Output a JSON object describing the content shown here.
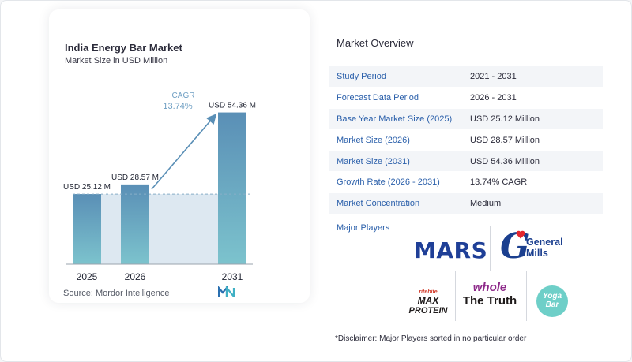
{
  "chart": {
    "title": "India Energy Bar Market",
    "subtitle": "Market Size in USD Million",
    "source": "Source:  Mordor Intelligence",
    "cagr_label": "CAGR",
    "cagr_value": "13.74%"
  },
  "chart_data": {
    "type": "bar",
    "categories": [
      "2025",
      "2026",
      "2031"
    ],
    "values": [
      25.12,
      28.57,
      54.36
    ],
    "data_labels": [
      "USD 25.12 M",
      "USD 28.57 M",
      "USD 54.36 M"
    ],
    "unit": "USD Million",
    "annotation": "CAGR 13.74%",
    "colors": {
      "bar_top": "#5a8fb6",
      "bar_bottom": "#7cc3cd",
      "band": "#dde8f1",
      "arrow": "#5a8fb6",
      "reference_line": "#88aec8"
    }
  },
  "overview": {
    "title": "Market Overview",
    "rows": [
      {
        "key": "Study Period",
        "value": "2021 - 2031"
      },
      {
        "key": "Forecast Data Period",
        "value": "2026 - 2031"
      },
      {
        "key": "Base Year Market Size (2025)",
        "value": "USD 25.12 Million"
      },
      {
        "key": "Market Size (2026)",
        "value": "USD 28.57 Million"
      },
      {
        "key": "Market Size (2031)",
        "value": "USD 54.36 Million"
      },
      {
        "key": "Growth Rate (2026 - 2031)",
        "value": "13.74% CAGR"
      },
      {
        "key": "Market Concentration",
        "value": "Medium"
      }
    ],
    "players_label": "Major Players",
    "disclaimer": "*Disclaimer: Major Players sorted in no particular order"
  },
  "players": {
    "mars": "MARS",
    "general_mills_mark": "G",
    "general_mills_line1": "General",
    "general_mills_line2": "Mills",
    "max_protein_brand": "ritebite",
    "max_protein_line1": "MAX",
    "max_protein_line2": "PROTEIN",
    "whole_truth_line1": "whole",
    "whole_truth_line2": "The Truth",
    "yoga_bar_line1": "Yoga",
    "yoga_bar_line2": "Bar"
  },
  "colors": {
    "accent_blue": "#2a5faa",
    "row_shade": "#f3f5f8"
  }
}
